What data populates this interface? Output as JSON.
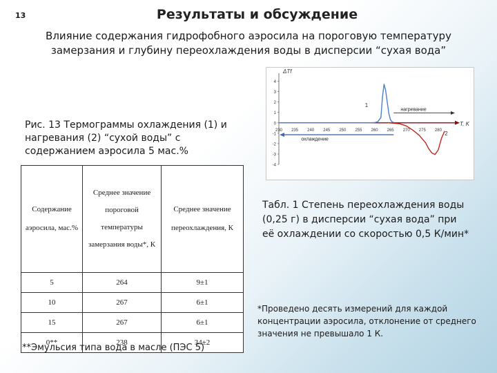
{
  "slide_number": "13",
  "title": "Результаты и обсуждение",
  "subtitle_line1": "Влияние содержания гидрофобного аэросила на пороговую температуру",
  "subtitle_line2": "замерзания и глубину переохлаждения воды в дисперсии “сухая вода”",
  "figure_caption": "Рис. 13 Термограммы охлаждения (1) и нагревания (2) “сухой воды” с содержанием аэросила 5 мас.%",
  "table_caption": "Табл. 1 Степень переохлаждения воды (0,25 г) в дисперсии “сухая вода” при её охлаждении со скоростью 0,5 К/мин*",
  "footnote_measurements": "*Проведено десять измерений для каждой концентрации аэросила, отклонение от среднего значения не превышало 1 К.",
  "footnote_emulsion": "**Эмульсия типа вода в масле (ПЭС 5)",
  "table": {
    "headers": [
      "Содержание аэросила, мас.%",
      "Среднее значение пороговой температуры замерзания воды*, К",
      "Среднее значение переохлаждения, К"
    ],
    "rows": [
      [
        "5",
        "264",
        "9±1"
      ],
      [
        "10",
        "267",
        "6±1"
      ],
      [
        "15",
        "267",
        "6±1"
      ],
      [
        "0**",
        "238",
        "34±2"
      ]
    ]
  },
  "chart_data": {
    "type": "line",
    "ylabel": "ΔTf",
    "xlabel": "T, K",
    "x_ticks": [
      "230",
      "235",
      "240",
      "245",
      "250",
      "255",
      "260",
      "265",
      "270",
      "275",
      "280"
    ],
    "y_ticks": [
      "4",
      "3",
      "2",
      "1",
      "0",
      "-1",
      "-2",
      "-3",
      "-4"
    ],
    "xlim": [
      230,
      285
    ],
    "ylim": [
      -4,
      4.5
    ],
    "annotations": {
      "heating_label": "нагревание",
      "cooling_label": "охлаждение",
      "curve1_label": "1",
      "curve2_label": "2"
    },
    "series": [
      {
        "name": "1",
        "color": "#4a7fd0",
        "x": [
          230,
          258,
          260,
          261,
          262,
          262.5,
          263,
          263.5,
          264,
          264.5,
          265,
          265.5,
          266
        ],
        "y": [
          0,
          0,
          0.02,
          0.1,
          0.5,
          2.5,
          3.7,
          3.1,
          2.0,
          0.9,
          0.3,
          0.1,
          0.05
        ]
      },
      {
        "name": "2",
        "color": "#c0281e",
        "x": [
          264,
          268,
          270,
          272,
          274,
          276,
          277,
          278,
          279,
          280,
          281,
          282
        ],
        "y": [
          0.02,
          -0.1,
          -0.3,
          -0.7,
          -1.2,
          -1.9,
          -2.5,
          -2.9,
          -3.05,
          -2.6,
          -1.5,
          -0.8
        ]
      }
    ],
    "arrows": {
      "heating_color": "#8a0c0c",
      "cooling_color": "#3d6bb0"
    }
  }
}
